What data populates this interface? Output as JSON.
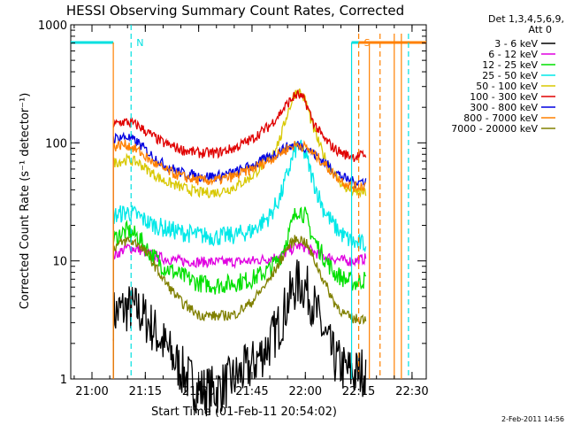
{
  "chart_data": {
    "type": "line",
    "title": "HESSI Observing Summary Count Rates, Corrected",
    "xlabel": "Start Time (01-Feb-11 20:54:02)",
    "ylabel": "Corrected Count Rate (s⁻¹ detector⁻¹)",
    "yscale": "log",
    "ylim": [
      1,
      1000
    ],
    "xlim": [
      "20:54:02",
      "22:34:00"
    ],
    "x_ticks": [
      "21:00",
      "21:15",
      "21:30",
      "21:45",
      "22:00",
      "22:15",
      "22:30"
    ],
    "y_ticks": [
      "1",
      "10",
      "100",
      "1000"
    ],
    "legend_header": [
      "Det 1,3,4,5,6,9,",
      "Att 0"
    ],
    "legend_position": "right",
    "timestamp": "2-Feb-2011 14:56",
    "x": [
      "21:06",
      "21:08",
      "21:10",
      "21:13",
      "21:16",
      "21:20",
      "21:25",
      "21:30",
      "21:35",
      "21:40",
      "21:45",
      "21:50",
      "21:53",
      "21:55",
      "21:57",
      "21:58",
      "22:00",
      "22:02",
      "22:05",
      "22:08",
      "22:11",
      "22:14",
      "22:17"
    ],
    "series": [
      {
        "name": "3 - 6 keV",
        "color": "#000000",
        "values": [
          3.5,
          3.8,
          4,
          3.8,
          3,
          2,
          1.2,
          0.8,
          0.8,
          1,
          1.3,
          2,
          3,
          4.5,
          6,
          6.5,
          6,
          4.5,
          2.5,
          1.5,
          1.2,
          1.1,
          1.2
        ]
      },
      {
        "name": "6 - 12 keV",
        "color": "#e000e0",
        "values": [
          11,
          12,
          13,
          12.5,
          11.5,
          10.5,
          10,
          9.8,
          9.8,
          9.8,
          10,
          10.5,
          11,
          12,
          13,
          13.5,
          13,
          12,
          11,
          10.5,
          10,
          10,
          10.5
        ]
      },
      {
        "name": "12 - 25 keV",
        "color": "#00e000",
        "values": [
          15,
          17,
          18,
          16,
          12,
          9,
          7.5,
          6.5,
          6.2,
          6.5,
          7,
          8.5,
          11,
          16,
          24,
          28,
          24,
          16,
          11,
          8,
          7,
          6.5,
          7
        ]
      },
      {
        "name": "25 - 50 keV",
        "color": "#00e8e8",
        "values": [
          24,
          25,
          26,
          24,
          21,
          19,
          17.5,
          16.5,
          16,
          16.5,
          18,
          24,
          35,
          55,
          85,
          95,
          80,
          50,
          28,
          20,
          16,
          14,
          14
        ]
      },
      {
        "name": "50 - 100 keV",
        "color": "#d8c800",
        "values": [
          68,
          70,
          72,
          68,
          58,
          48,
          42,
          38,
          38,
          42,
          52,
          75,
          110,
          180,
          260,
          280,
          230,
          140,
          80,
          55,
          42,
          38,
          38
        ]
      },
      {
        "name": "100 - 300 keV",
        "color": "#e00000",
        "values": [
          140,
          150,
          150,
          140,
          120,
          100,
          88,
          82,
          82,
          90,
          108,
          140,
          180,
          215,
          250,
          255,
          225,
          155,
          110,
          90,
          80,
          76,
          80
        ]
      },
      {
        "name": "300 - 800 keV",
        "color": "#0000e0",
        "values": [
          108,
          112,
          112,
          100,
          82,
          66,
          56,
          52,
          52,
          56,
          64,
          76,
          86,
          92,
          96,
          96,
          92,
          82,
          70,
          58,
          50,
          46,
          48
        ]
      },
      {
        "name": "800 - 7000 keV",
        "color": "#ff8000",
        "values": [
          92,
          96,
          96,
          86,
          72,
          60,
          52,
          48,
          48,
          52,
          60,
          72,
          82,
          90,
          95,
          96,
          92,
          82,
          68,
          54,
          46,
          42,
          44
        ]
      },
      {
        "name": "7000 - 20000 keV",
        "color": "#808000",
        "values": [
          13,
          14,
          15,
          14,
          11,
          7,
          4.5,
          3.5,
          3.4,
          3.5,
          4.5,
          7,
          10,
          13,
          15,
          15.5,
          14.5,
          11,
          7,
          4.5,
          3.5,
          3.2,
          3.3
        ]
      }
    ],
    "markers": [
      {
        "label": "N",
        "color": "#00e0e0",
        "time": "21:11",
        "style": "dashed"
      },
      {
        "label": "S",
        "color": "#ff8000",
        "time": "22:15",
        "style": "dashed"
      }
    ],
    "state_bars": [
      {
        "color": "#00e0e0",
        "from": "20:54:02",
        "to": "21:06",
        "edge": "21:06",
        "edge_color": "#ff8000"
      },
      {
        "color": "#00e0e0",
        "from": "22:13",
        "to": "22:34:00",
        "edge": "22:13",
        "edge_color": "#00e0e0"
      },
      {
        "color": "#ff8000",
        "from": "22:15",
        "to": "22:34:00",
        "edge": "22:18",
        "edge_color": "#ff8000"
      }
    ],
    "extra_lines": [
      {
        "color": "#ff8000",
        "time": "22:21",
        "style": "dashed"
      },
      {
        "color": "#ff8000",
        "time": "22:25",
        "style": "solid"
      },
      {
        "color": "#ff8000",
        "time": "22:27",
        "style": "solid"
      },
      {
        "color": "#00e0e0",
        "time": "22:29",
        "style": "dashed"
      }
    ]
  }
}
